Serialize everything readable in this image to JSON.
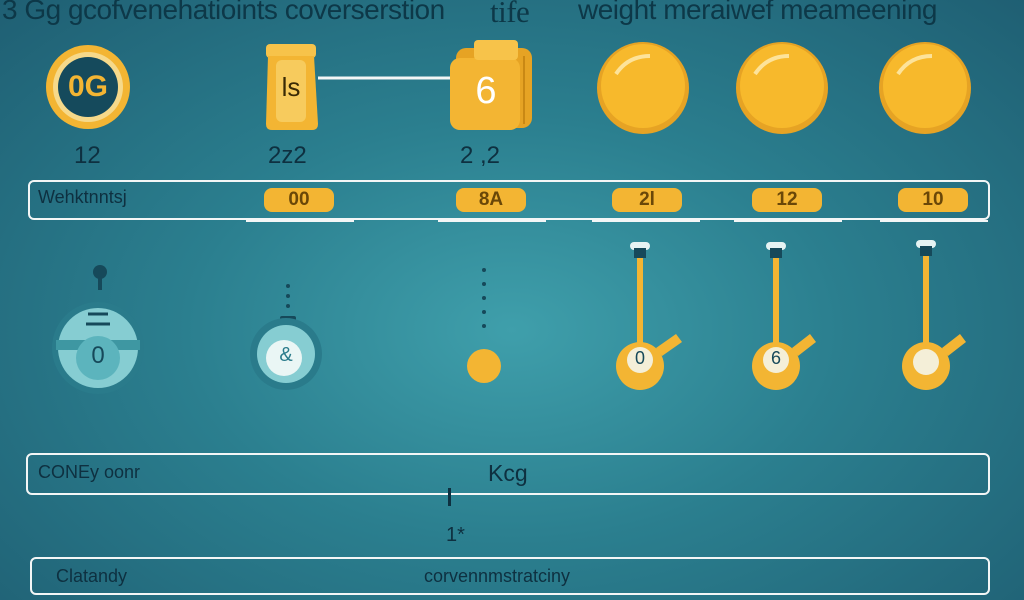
{
  "title": {
    "part1": "3 Gg gcofvenehatioints coverserstion",
    "part2": "tife",
    "part3": "weight meraiwef meameening"
  },
  "top_row": {
    "badge_text": "0G",
    "small_weight_text": "ls",
    "large_weight_text": "6",
    "labels": [
      "12",
      "2z2",
      "2 ,2"
    ]
  },
  "weights_row": {
    "label": "Wehktnntsj",
    "pills": [
      "00",
      "8A",
      "2l",
      "12",
      "10"
    ]
  },
  "scales_row": {
    "badge_texts": [
      "0",
      "&"
    ],
    "pendulum_texts": [
      "0",
      "6",
      ""
    ]
  },
  "conversion_bar": {
    "label": "CONEy oonr",
    "unit": "Kcg"
  },
  "marker_label": "1*",
  "bottom_bar": {
    "label": "Clatandy",
    "text": "corvennmstratciny"
  },
  "colors": {
    "background": "#2b7f8f",
    "accent": "#f3b533",
    "dark": "#0d3848",
    "light": "#f3f6f6"
  }
}
